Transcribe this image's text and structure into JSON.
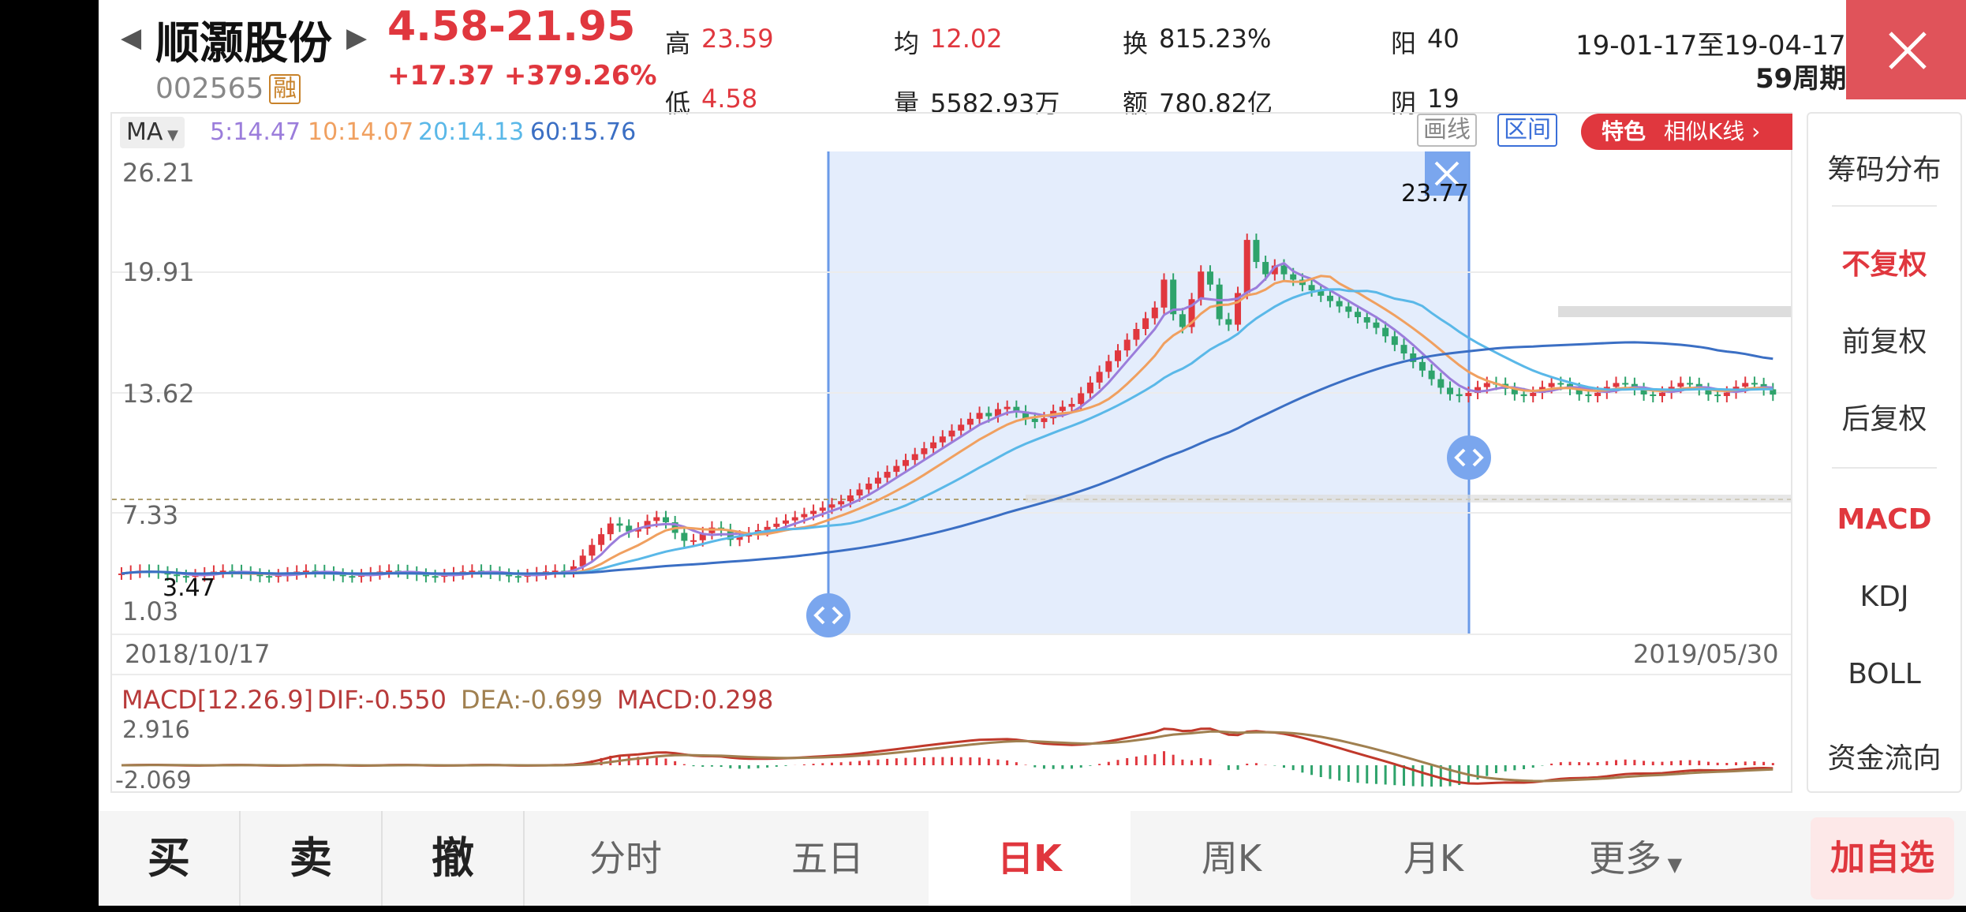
{
  "header": {
    "stock_name": "顺灏股份",
    "stock_code": "002565",
    "margin_badge": "融",
    "price_range": "4.58-21.95",
    "change": "+17.37 +379.26%",
    "stats": {
      "high_label": "高",
      "high_value": "23.59",
      "low_label": "低",
      "low_value": "4.58",
      "avg_label": "均",
      "avg_value": "12.02",
      "vol_label": "量",
      "vol_value": "5582.93万",
      "turnover_label": "换",
      "turnover_value": "815.23%",
      "amount_label": "额",
      "amount_value": "780.82亿",
      "up_label": "阳",
      "up_value": "40",
      "down_label": "阴",
      "down_value": "19"
    },
    "date_range": "19-01-17至19-04-17",
    "period_count": "59周期"
  },
  "ma_bar": {
    "selector": "MA",
    "ma5": "5:14.47",
    "ma10": "10:14.07",
    "ma20": "20:14.13",
    "ma60": "60:15.76",
    "draw_btn": "画线",
    "range_btn": "区间",
    "feature_tag": "特色",
    "feature_text": "相似K线 ›"
  },
  "main_chart": {
    "y_ticks": [
      "26.21",
      "19.91",
      "13.62",
      "7.33",
      "1.03"
    ],
    "x_start": "2018/10/17",
    "x_end": "2019/05/30",
    "max_label": "23.77",
    "min_label": "3.47"
  },
  "macd": {
    "title": "MACD[12.26.9]",
    "dif": "DIF:-0.550",
    "dea": "DEA:-0.699",
    "macd_val": "MACD:0.298",
    "y_top": "2.916",
    "y_bottom": "-2.069"
  },
  "sidebar": {
    "items": [
      "筹码分布",
      "不复权",
      "前复权",
      "后复权",
      "MACD",
      "KDJ",
      "BOLL",
      "资金流向"
    ]
  },
  "bottom_tabs": {
    "buy": "买",
    "sell": "卖",
    "cancel": "撤",
    "intraday": "分时",
    "five_day": "五日",
    "day_k": "日K",
    "week_k": "周K",
    "month_k": "月K",
    "more": "更多",
    "add_watch": "加自选"
  },
  "colors": {
    "up": "#e0373e",
    "down": "#2ea36b",
    "ma5": "#9b7ddb",
    "ma10": "#f0a060",
    "ma20": "#5ab8e8",
    "ma60": "#3b6fc4"
  }
}
